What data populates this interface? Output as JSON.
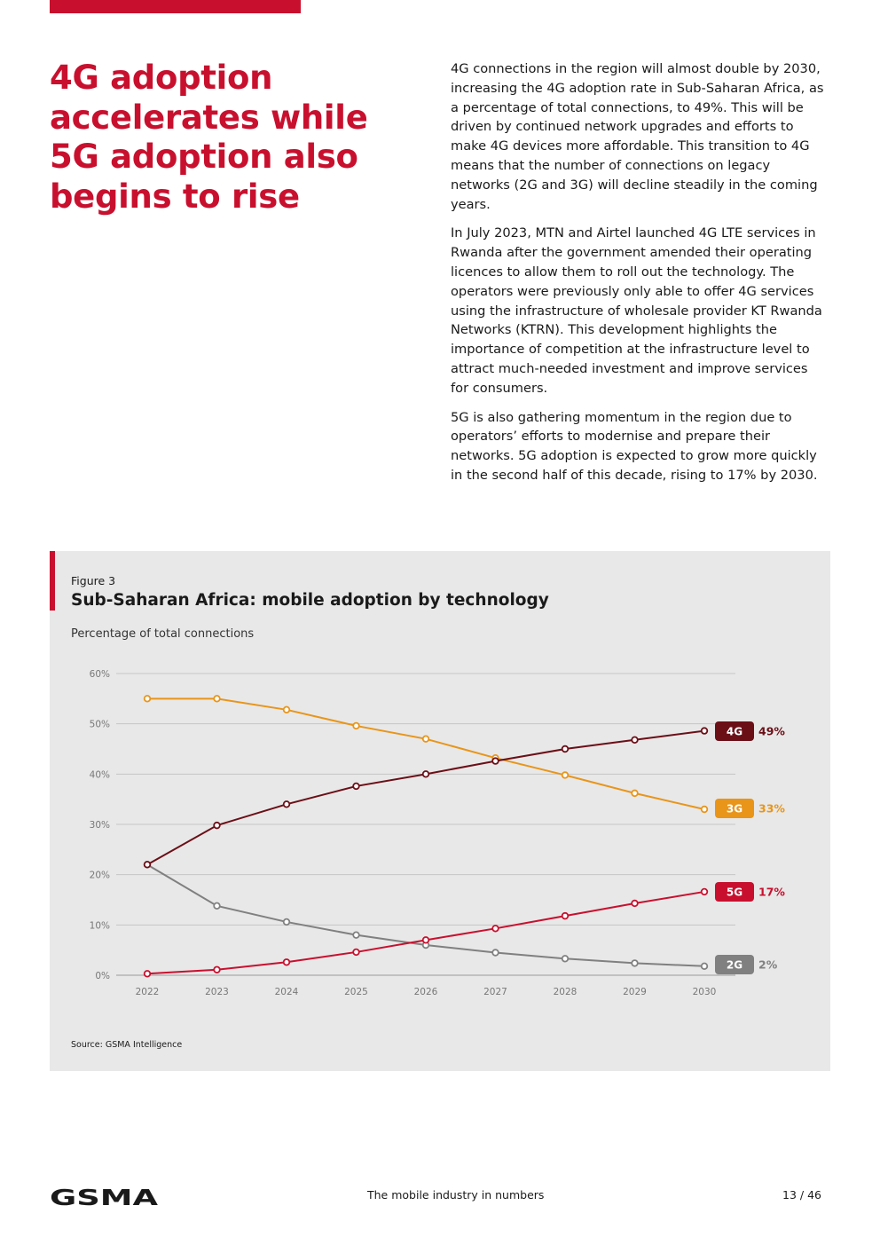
{
  "header": {
    "accent_color": "#c8102e"
  },
  "heading": "4G adoption accelerates while 5G adoption also begins to rise",
  "paragraphs": [
    "4G connections in the region will almost double by 2030, increasing the 4G adoption rate in Sub-Saharan Africa, as a percentage of total connections, to 49%. This will be driven by continued network upgrades and efforts to make 4G devices more affordable. This transition to 4G means that the number of connections on legacy networks (2G and 3G) will decline steadily in the coming years.",
    "In July 2023, MTN and Airtel launched 4G LTE services in Rwanda after the government amended their operating licences to allow them to roll out the technology. The operators were previously only able to offer 4G services using the infrastructure of wholesale provider KT Rwanda Networks (KTRN). This development highlights the importance of competition at the infrastructure level to attract much-needed investment and improve services for consumers.",
    "5G is also gathering momentum in the region due to operators’ efforts to modernise and prepare their networks. 5G adoption is expected to grow more quickly in the second half of this decade, rising to 17% by 2030."
  ],
  "figure": {
    "label": "Figure 3",
    "title": "Sub-Saharan Africa: mobile adoption by technology",
    "subtitle": "Percentage of total connections",
    "source": "Source: GSMA Intelligence"
  },
  "chart_data": {
    "type": "line",
    "title": "Sub-Saharan Africa: mobile adoption by technology",
    "ylabel": "Percentage of total connections",
    "xlabel": "",
    "ylim": [
      0,
      60
    ],
    "yticks": [
      0,
      10,
      20,
      30,
      40,
      50,
      60
    ],
    "ytick_labels": [
      "0%",
      "10%",
      "20%",
      "30%",
      "40%",
      "50%",
      "60%"
    ],
    "categories": [
      "2022",
      "2023",
      "2024",
      "2025",
      "2026",
      "2027",
      "2028",
      "2029",
      "2030"
    ],
    "grid": true,
    "series": [
      {
        "name": "3G",
        "color": "#e8951a",
        "end_label": "33%",
        "values": [
          55,
          55,
          52.8,
          49.6,
          47,
          43.2,
          39.8,
          36.2,
          33
        ]
      },
      {
        "name": "4G",
        "color": "#6b0f17",
        "end_label": "49%",
        "values": [
          22,
          29.8,
          34,
          37.6,
          40,
          42.6,
          45,
          46.8,
          48.6
        ]
      },
      {
        "name": "5G",
        "color": "#c8102e",
        "end_label": "17%",
        "values": [
          0.3,
          1.1,
          2.6,
          4.6,
          7,
          9.3,
          11.8,
          14.3,
          16.6
        ]
      },
      {
        "name": "2G",
        "color": "#808080",
        "end_label": "2%",
        "values": [
          22,
          13.8,
          10.6,
          8,
          6,
          4.5,
          3.3,
          2.4,
          1.8
        ]
      }
    ]
  },
  "footer": {
    "logo_text": "GSMA",
    "center": "The mobile industry in numbers",
    "page": "13 / 46"
  }
}
